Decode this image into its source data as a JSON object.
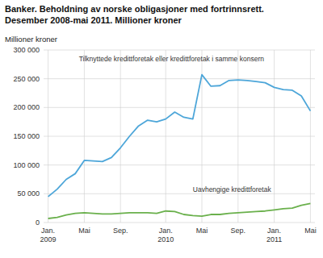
{
  "chart_data": {
    "type": "line",
    "title": "Banker. Beholdning av norske obligasjoner med fortrinnsrett.",
    "subtitle": "Desember 2008-mai 2011. Millioner kroner",
    "y_label": "Millioner kroner",
    "categories": [
      "Jan.\n2009",
      null,
      null,
      null,
      "Mai",
      null,
      null,
      null,
      "Sep.",
      null,
      null,
      null,
      null,
      "Jan.\n2010",
      null,
      null,
      null,
      "Mai",
      null,
      null,
      null,
      "Sep.",
      null,
      null,
      null,
      "Jan.\n2011",
      null,
      null,
      null,
      "Mai"
    ],
    "series": [
      {
        "name": "Tilknyttede kredittforetak eller kredittforetak i samme konsern",
        "color": "#4da6d9",
        "values": [
          45000,
          58000,
          75000,
          85000,
          108000,
          107000,
          106000,
          113000,
          130000,
          150000,
          168000,
          178000,
          175000,
          180000,
          192000,
          183000,
          180000,
          257000,
          237000,
          238000,
          247000,
          248000,
          247000,
          245000,
          243000,
          235000,
          231000,
          230000,
          220000,
          194000
        ]
      },
      {
        "name": "Uavhengige kredittforetak",
        "color": "#6ab04c",
        "values": [
          7000,
          9000,
          13000,
          16000,
          17000,
          16000,
          15000,
          15000,
          16000,
          17000,
          17000,
          17000,
          16000,
          20000,
          19000,
          14000,
          12000,
          11000,
          14000,
          14000,
          16000,
          17000,
          18000,
          19000,
          20000,
          22000,
          24000,
          25000,
          30000,
          33000
        ]
      }
    ],
    "ylim": [
      0,
      300000
    ],
    "yticks": [
      0,
      {
        "value": 50000,
        "label": "50 000"
      },
      {
        "value": 100000,
        "label": "100 000"
      },
      {
        "value": 150000,
        "label": "150 000"
      },
      {
        "value": 200000,
        "label": "200 000"
      },
      {
        "value": 250000,
        "label": "250 000"
      },
      {
        "value": 300000,
        "label": "300 000"
      }
    ],
    "grid": true
  }
}
